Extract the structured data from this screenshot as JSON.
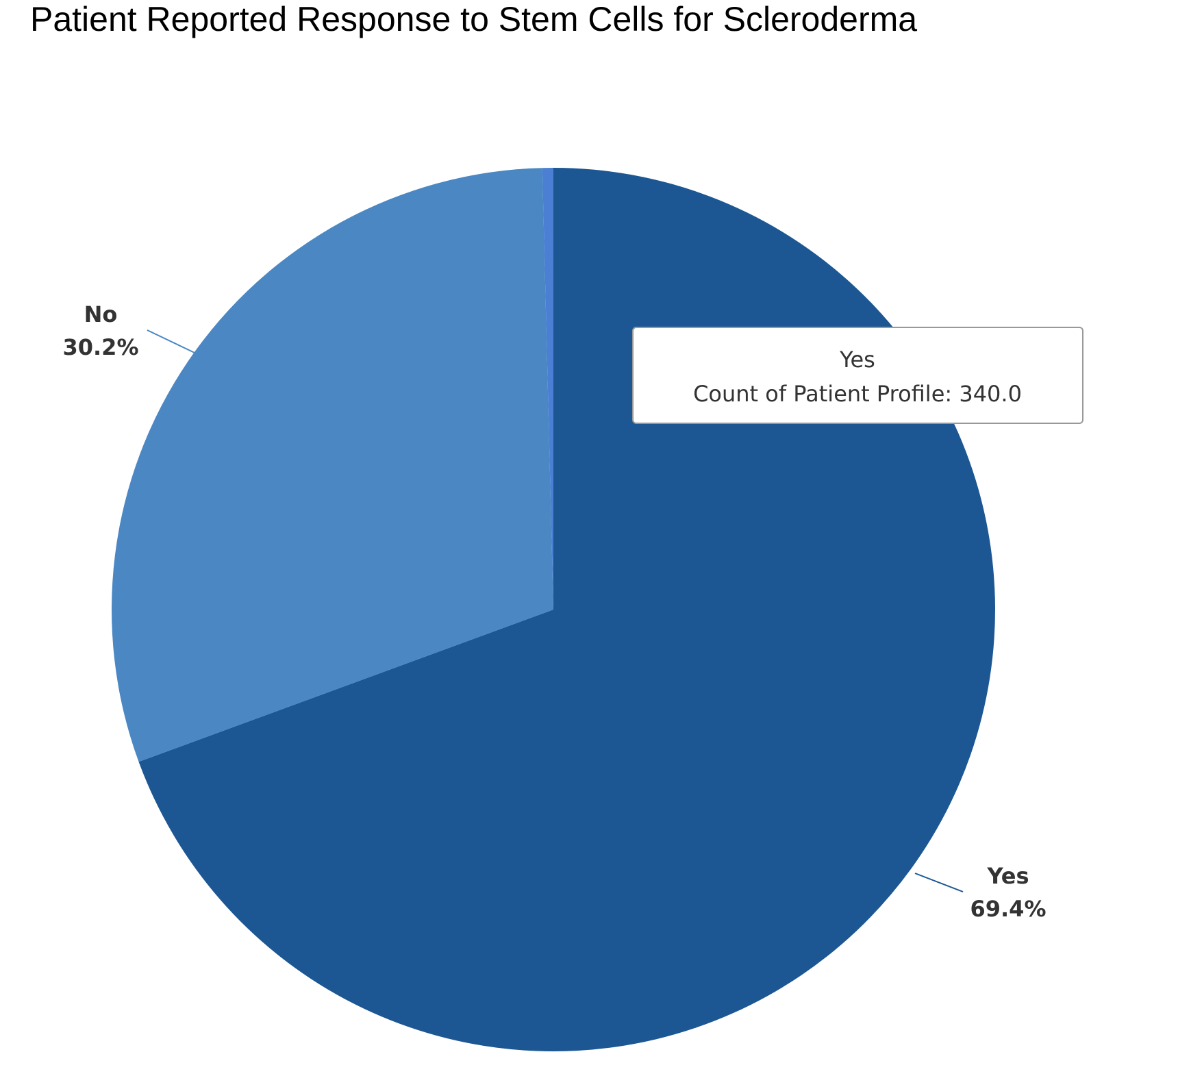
{
  "chart_data": {
    "type": "pie",
    "title": "Patient Reported Response to Stem Cells for Scleroderma",
    "slices": [
      {
        "name": "Yes",
        "percent": 69.4,
        "label": "69.4%",
        "color": "#1c5793"
      },
      {
        "name": "No",
        "percent": 30.2,
        "label": "30.2%",
        "color": "#4a87c3"
      },
      {
        "name": "",
        "percent": 0.4,
        "label": "",
        "color": "#4a7fd4"
      }
    ],
    "start_angle_deg": 0,
    "direction": "clockwise",
    "legend": "none",
    "tooltip": {
      "title": "Yes",
      "text": "Count of Patient Profile: 340.0"
    }
  }
}
